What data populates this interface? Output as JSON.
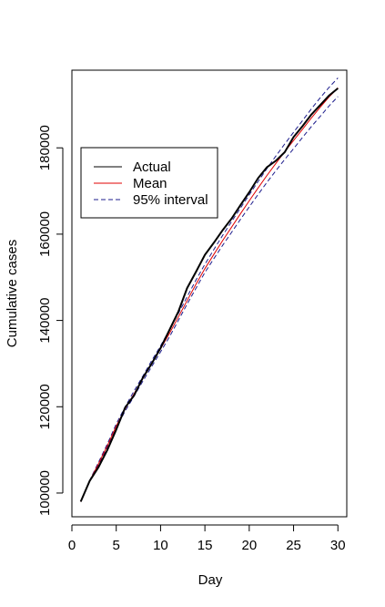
{
  "chart_data": {
    "type": "line",
    "title": "",
    "xlabel": "Day",
    "ylabel": "Cumulative cases",
    "xlim": [
      0,
      31
    ],
    "ylim": [
      94500,
      198000
    ],
    "xticks": [
      0,
      5,
      10,
      15,
      20,
      25,
      30
    ],
    "yticks": [
      100000,
      120000,
      140000,
      160000,
      180000
    ],
    "grid": false,
    "legend_position": "upper-left",
    "x": [
      1,
      2,
      3,
      4,
      5,
      6,
      7,
      8,
      9,
      10,
      11,
      12,
      13,
      14,
      15,
      16,
      17,
      18,
      19,
      20,
      21,
      22,
      23,
      24,
      25,
      26,
      27,
      28,
      29,
      30
    ],
    "series": [
      {
        "name": "Actual",
        "color": "#000000",
        "style": "solid",
        "values": [
          98000,
          102800,
          106000,
          110000,
          114700,
          119800,
          122600,
          126700,
          130000,
          133600,
          137800,
          142000,
          147500,
          151300,
          155200,
          158000,
          160900,
          163600,
          166700,
          169700,
          173000,
          175500,
          177000,
          179000,
          182500,
          185000,
          187700,
          189900,
          192100,
          193800
        ]
      },
      {
        "name": "Mean",
        "color": "#e00000",
        "style": "solid",
        "values": [
          98000,
          102800,
          106800,
          111000,
          115500,
          119500,
          123000,
          126500,
          130000,
          133400,
          137000,
          140800,
          144600,
          148400,
          152000,
          155300,
          158500,
          161600,
          164700,
          167700,
          170700,
          173600,
          176400,
          179100,
          181700,
          184300,
          186900,
          189400,
          191800,
          193900
        ]
      },
      {
        "name": "95% interval",
        "color": "#1c1c8c",
        "style": "dashed",
        "values": [
          98000,
          102900,
          107100,
          111400,
          116000,
          120000,
          123600,
          127100,
          130700,
          134100,
          137800,
          141600,
          145500,
          149400,
          153000,
          156400,
          159700,
          162900,
          166000,
          169100,
          172200,
          175200,
          178100,
          180900,
          183600,
          186300,
          189000,
          191600,
          194000,
          196200
        ]
      },
      {
        "name": "95% interval",
        "color": "#1c1c8c",
        "style": "dashed",
        "values": [
          98000,
          102700,
          106500,
          110600,
          115000,
          119000,
          122400,
          125900,
          129300,
          132700,
          136200,
          140000,
          143800,
          147500,
          151100,
          154300,
          157400,
          160400,
          163400,
          166300,
          169200,
          172000,
          174700,
          177300,
          179800,
          182400,
          184900,
          187300,
          189700,
          191900
        ]
      }
    ],
    "legend": [
      {
        "label": "Actual",
        "color": "#000000",
        "style": "solid"
      },
      {
        "label": "Mean",
        "color": "#e00000",
        "style": "solid"
      },
      {
        "label": "95% interval",
        "color": "#1c1c8c",
        "style": "dashed"
      }
    ]
  }
}
